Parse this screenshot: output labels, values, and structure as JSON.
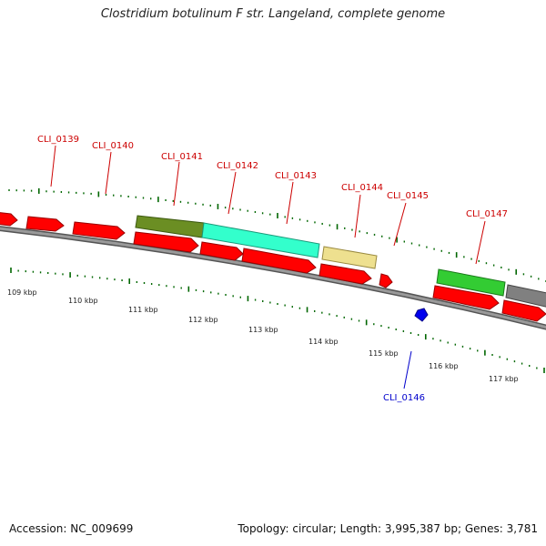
{
  "header": {
    "title": "Clostridium botulinum F str. Langeland, complete genome"
  },
  "footer": {
    "accession": "Accession: NC_009699",
    "summary": "Topology: circular; Length: 3,995,387 bp; Genes: 3,781"
  },
  "colors": {
    "backbone": "#7f7f7f",
    "label_upper": "#cc0000",
    "label_lower": "#0000cc",
    "tick": "#006600",
    "cds_red": "#ff0000",
    "gene_olive": "#6b8e23",
    "gene_aqua": "#33ffcc",
    "gene_khaki": "#eee08f",
    "gene_green": "#33cc33",
    "gene_gray": "#808080",
    "gene_blue": "#0000ee"
  },
  "scale": {
    "labels": [
      "109 kbp",
      "110 kbp",
      "111 kbp",
      "112 kbp",
      "113 kbp",
      "114 kbp",
      "115 kbp",
      "116 kbp",
      "117 kbp"
    ]
  },
  "gene_labels": {
    "upper": [
      "CLI_0139",
      "CLI_0140",
      "CLI_0141",
      "CLI_0142",
      "CLI_0143",
      "CLI_0144",
      "CLI_0145",
      "CLI_0147"
    ],
    "lower": [
      "CLI_0146"
    ]
  }
}
